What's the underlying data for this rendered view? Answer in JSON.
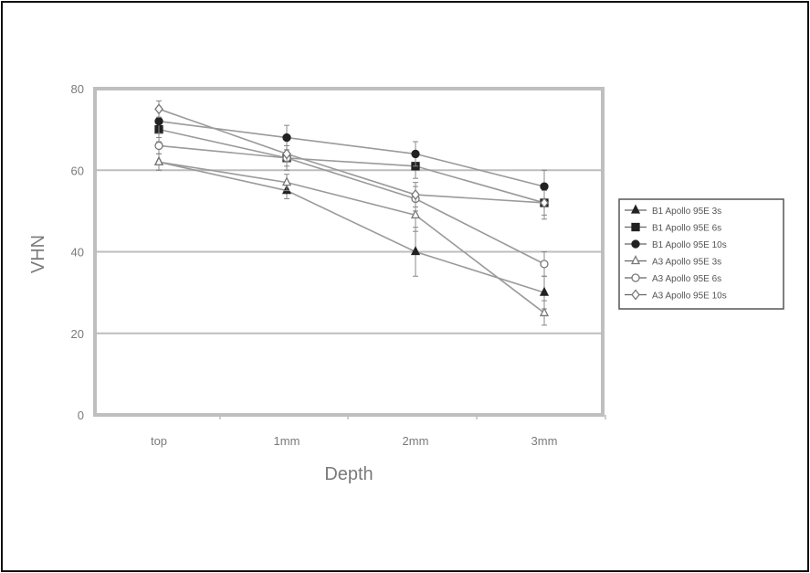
{
  "chart_data": {
    "type": "line",
    "title": "",
    "xlabel": "Depth",
    "ylabel": "VHN",
    "categories": [
      "top",
      "1mm",
      "2mm",
      "3mm"
    ],
    "ylim": [
      0,
      80
    ],
    "yticks": [
      "0",
      "20",
      "40",
      "60",
      "80"
    ],
    "grid": "horizontal",
    "legend_position": "right",
    "series": [
      {
        "name": "B1 Apollo 95E 3s",
        "marker": "triangle-filled",
        "values": [
          62,
          55,
          40,
          30
        ],
        "errors": [
          2,
          2,
          6,
          4
        ]
      },
      {
        "name": "B1 Apollo 95E 6s",
        "marker": "square-filled",
        "values": [
          70,
          63,
          61,
          52
        ],
        "errors": [
          3,
          3,
          3,
          4
        ]
      },
      {
        "name": "B1 Apollo 95E 10s",
        "marker": "circle-filled",
        "values": [
          72,
          68,
          64,
          56
        ],
        "errors": [
          3,
          3,
          3,
          4
        ]
      },
      {
        "name": "A3 Apollo 95E 3s",
        "marker": "triangle-open",
        "values": [
          62,
          57,
          49,
          25
        ],
        "errors": [
          2,
          2,
          4,
          3
        ]
      },
      {
        "name": "A3 Apollo 95E 6s",
        "marker": "circle-open",
        "values": [
          66,
          63,
          53,
          37
        ],
        "errors": [
          2,
          2,
          3,
          3
        ]
      },
      {
        "name": "A3 Apollo 95E 10s",
        "marker": "diamond-open",
        "values": [
          75,
          64,
          54,
          52
        ],
        "errors": [
          2,
          2,
          3,
          3
        ]
      }
    ]
  }
}
